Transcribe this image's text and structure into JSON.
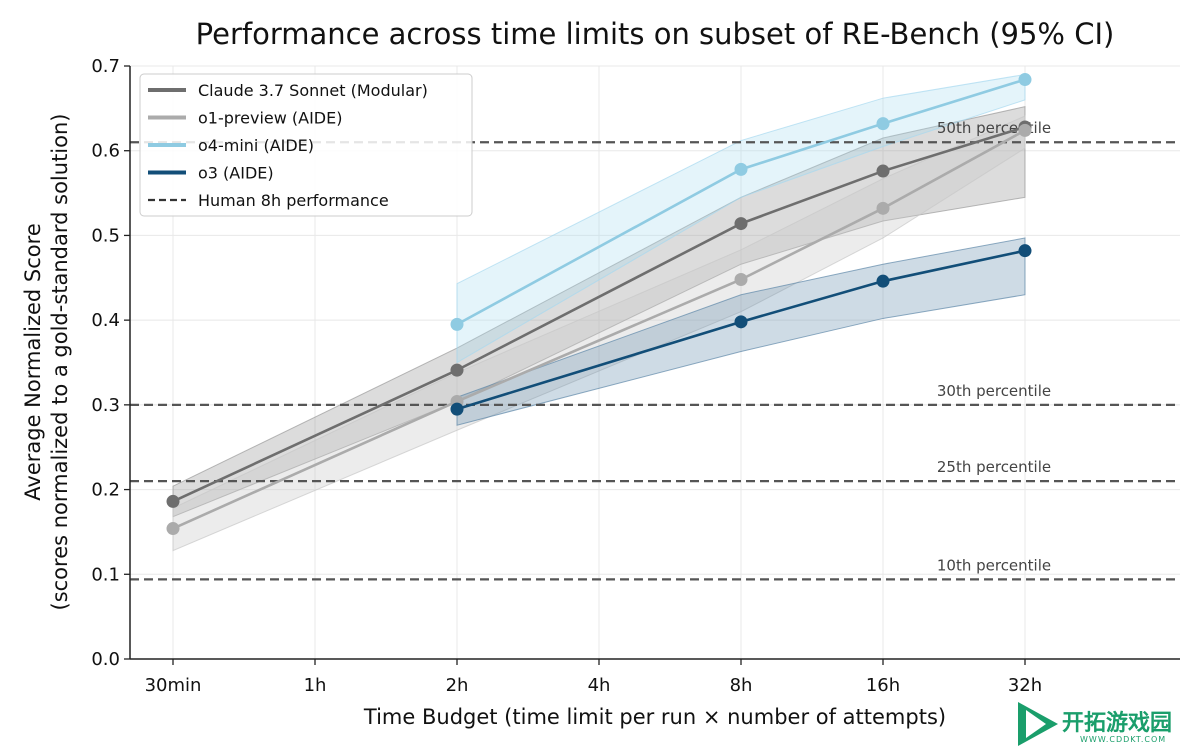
{
  "chart_data": {
    "type": "line",
    "title": "Performance across time limits on subset of RE-Bench (95% CI)",
    "xlabel": "Time Budget (time limit per run × number of attempts)",
    "ylabel_line1": "Average Normalized Score",
    "ylabel_line2": "(scores normalized to a gold-standard solution)",
    "categories": [
      "30min",
      "1h",
      "2h",
      "4h",
      "8h",
      "16h",
      "32h"
    ],
    "ylim": [
      0,
      0.7
    ],
    "yticks": [
      "0.0",
      "0.1",
      "0.2",
      "0.3",
      "0.4",
      "0.5",
      "0.6",
      "0.7"
    ],
    "grid": true,
    "legend_position": "top-left",
    "series": [
      {
        "name": "Claude 3.7 Sonnet (Modular)",
        "color": "#6e6e6e",
        "band_color": "#9a9a9a",
        "band_opacity": 0.35,
        "points": [
          {
            "x": "30min",
            "y": 0.186,
            "lo": 0.168,
            "hi": 0.204
          },
          {
            "x": "2h",
            "y": 0.341,
            "lo": 0.304,
            "hi": 0.367
          },
          {
            "x": "8h",
            "y": 0.514,
            "lo": 0.466,
            "hi": 0.545
          },
          {
            "x": "16h",
            "y": 0.576,
            "lo": 0.517,
            "hi": 0.615
          },
          {
            "x": "32h",
            "y": 0.628,
            "lo": 0.545,
            "hi": 0.652
          }
        ]
      },
      {
        "name": "o1-preview (AIDE)",
        "color": "#ababab",
        "band_color": "#c8c8c8",
        "band_opacity": 0.35,
        "points": [
          {
            "x": "30min",
            "y": 0.154,
            "lo": 0.128,
            "hi": 0.178
          },
          {
            "x": "2h",
            "y": 0.304,
            "lo": 0.27,
            "hi": 0.338
          },
          {
            "x": "8h",
            "y": 0.448,
            "lo": 0.41,
            "hi": 0.483
          },
          {
            "x": "16h",
            "y": 0.532,
            "lo": 0.497,
            "hi": 0.567
          },
          {
            "x": "32h",
            "y": 0.624,
            "lo": 0.603,
            "hi": 0.641
          }
        ]
      },
      {
        "name": "o4-mini (AIDE)",
        "color": "#8fcbe2",
        "band_color": "#a7d9ef",
        "band_opacity": 0.3,
        "points": [
          {
            "x": "2h",
            "y": 0.395,
            "lo": 0.35,
            "hi": 0.443
          },
          {
            "x": "8h",
            "y": 0.578,
            "lo": 0.545,
            "hi": 0.612
          },
          {
            "x": "16h",
            "y": 0.632,
            "lo": 0.605,
            "hi": 0.662
          },
          {
            "x": "32h",
            "y": 0.684,
            "lo": 0.66,
            "hi": 0.69
          }
        ]
      },
      {
        "name": "o3 (AIDE)",
        "color": "#124e78",
        "band_color": "#5e87a8",
        "band_opacity": 0.3,
        "points": [
          {
            "x": "2h",
            "y": 0.295,
            "lo": 0.276,
            "hi": 0.309
          },
          {
            "x": "8h",
            "y": 0.398,
            "lo": 0.363,
            "hi": 0.43
          },
          {
            "x": "16h",
            "y": 0.446,
            "lo": 0.402,
            "hi": 0.466
          },
          {
            "x": "32h",
            "y": 0.482,
            "lo": 0.43,
            "hi": 0.497
          }
        ]
      }
    ],
    "reference_lines": {
      "legend_label": "Human 8h performance",
      "color": "#555555",
      "lines": [
        {
          "y": 0.61,
          "label": "50th percentile"
        },
        {
          "y": 0.3,
          "label": "30th percentile"
        },
        {
          "y": 0.21,
          "label": "25th percentile"
        },
        {
          "y": 0.094,
          "label": "10th percentile"
        }
      ]
    }
  },
  "watermark": {
    "text": "开拓游戏园",
    "subtext": "WWW.CDDKT.COM"
  }
}
